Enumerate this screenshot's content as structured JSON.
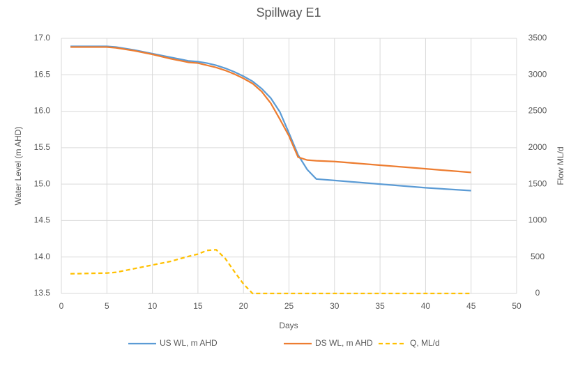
{
  "chart_data": {
    "type": "line",
    "title": "Spillway E1",
    "x_label": "Days",
    "y_label": "Water Level (m AHD)",
    "y2_label": "Flow ML/d",
    "x": [
      1,
      5,
      6,
      8,
      10,
      12,
      14,
      15,
      16,
      17,
      18,
      19,
      20,
      21,
      22,
      23,
      24,
      25,
      26,
      27,
      28,
      30,
      35,
      40,
      45
    ],
    "series": [
      {
        "name": "US WL, m AHD",
        "color": "#5b9bd5",
        "values": [
          16.89,
          16.89,
          16.88,
          16.84,
          16.79,
          16.74,
          16.69,
          16.68,
          16.66,
          16.63,
          16.59,
          16.54,
          16.48,
          16.41,
          16.31,
          16.18,
          15.99,
          15.7,
          15.4,
          15.2,
          15.07,
          15.05,
          15.0,
          14.95,
          14.91
        ]
      },
      {
        "name": "DS WL, m AHD",
        "color": "#ed7d31",
        "values": [
          16.88,
          16.88,
          16.87,
          16.83,
          16.78,
          16.72,
          16.67,
          16.66,
          16.63,
          16.6,
          16.56,
          16.51,
          16.45,
          16.38,
          16.27,
          16.11,
          15.89,
          15.66,
          15.37,
          15.33,
          15.32,
          15.31,
          15.26,
          15.21,
          15.16
        ]
      },
      {
        "name": "Q, ML/d",
        "color": "#ffc000",
        "dashed": true,
        "axis": "y2",
        "values": [
          270,
          280,
          290,
          340,
          390,
          440,
          510,
          540,
          590,
          600,
          480,
          300,
          130,
          0,
          0,
          0,
          0,
          0,
          0,
          0,
          0,
          0,
          0,
          0,
          0
        ]
      }
    ],
    "xlim": [
      0,
      50
    ],
    "xticks": [
      0,
      5,
      10,
      15,
      20,
      25,
      30,
      35,
      40,
      45,
      50
    ],
    "ylim": [
      13.5,
      17.0
    ],
    "yticks": [
      {
        "value": 13.5,
        "label": "13.5"
      },
      {
        "value": 14.0,
        "label": "14.0"
      },
      {
        "value": 14.5,
        "label": "14.5"
      },
      {
        "value": 15.0,
        "label": "15.0"
      },
      {
        "value": 15.5,
        "label": "15.5"
      },
      {
        "value": 16.0,
        "label": "16.0"
      },
      {
        "value": 16.5,
        "label": "16.5"
      },
      {
        "value": 17.0,
        "label": "17.0"
      }
    ],
    "y2lim": [
      0,
      3500
    ],
    "y2ticks": [
      0,
      500,
      1000,
      1500,
      2000,
      2500,
      3000,
      3500
    ],
    "grid": true,
    "legend": "bottom"
  }
}
